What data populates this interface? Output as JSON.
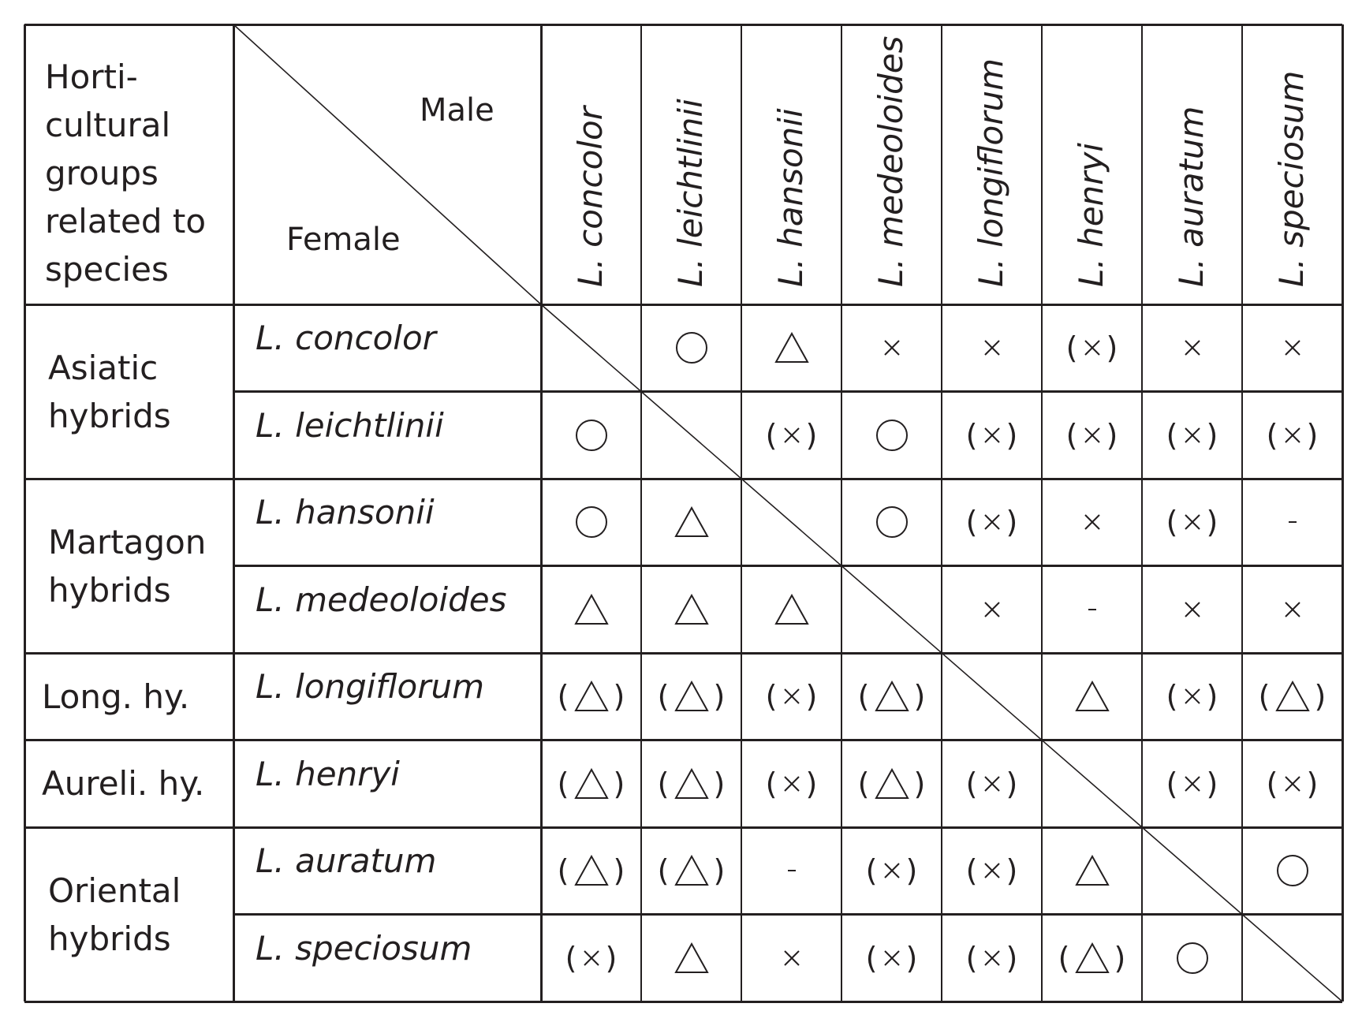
{
  "header": {
    "group_label": "Horti-\ncultural\ngroups\nrelated to\nspecies",
    "male_label": "Male",
    "female_label": "Female"
  },
  "columns": [
    "L. concolor",
    "L. leichtlinii",
    "L. hansonii",
    "L. medeoloides",
    "L. longiflorum",
    "L. henryi",
    "L. auratum",
    "L. speciosum"
  ],
  "groups": [
    {
      "label": "Asiatic\nhybrids",
      "rows": [
        0,
        1
      ]
    },
    {
      "label": "Martagon\nhybrids",
      "rows": [
        2,
        3
      ]
    },
    {
      "label": "Long. hy.",
      "rows": [
        4
      ]
    },
    {
      "label": "Aureli. hy.",
      "rows": [
        5
      ]
    },
    {
      "label": "Oriental\nhybrids",
      "rows": [
        6,
        7
      ]
    }
  ],
  "rows": [
    {
      "species": "L. concolor",
      "cells": [
        "",
        "O",
        "T",
        "x",
        "x",
        "(x)",
        "x",
        "x"
      ]
    },
    {
      "species": "L. leichtlinii",
      "cells": [
        "O",
        "",
        "(x)",
        "O",
        "(x)",
        "(x)",
        "(x)",
        "(x)"
      ]
    },
    {
      "species": "L. hansonii",
      "cells": [
        "O",
        "T",
        "",
        "O",
        "(x)",
        "x",
        "(x)",
        "-"
      ]
    },
    {
      "species": "L. medeoloides",
      "cells": [
        "T",
        "T",
        "T",
        "",
        "x",
        "-",
        "x",
        "x"
      ]
    },
    {
      "species": "L. longiflorum",
      "cells": [
        "(T)",
        "(T)",
        "(x)",
        "(T)",
        "",
        "T",
        "(x)",
        "(T)"
      ]
    },
    {
      "species": "L. henryi",
      "cells": [
        "(T)",
        "(T)",
        "(x)",
        "(T)",
        "(x)",
        "",
        "(x)",
        "(x)"
      ]
    },
    {
      "species": "L. auratum",
      "cells": [
        "(T)",
        "(T)",
        "-",
        "(x)",
        "(x)",
        "T",
        "",
        "O"
      ]
    },
    {
      "species": "L. speciosum",
      "cells": [
        "(x)",
        "T",
        "x",
        "(x)",
        "(x)",
        "(T)",
        "O",
        ""
      ]
    }
  ],
  "symbol_legend_codes": {
    "O": "circle",
    "T": "triangle",
    "x": "cross",
    "-": "dash"
  }
}
